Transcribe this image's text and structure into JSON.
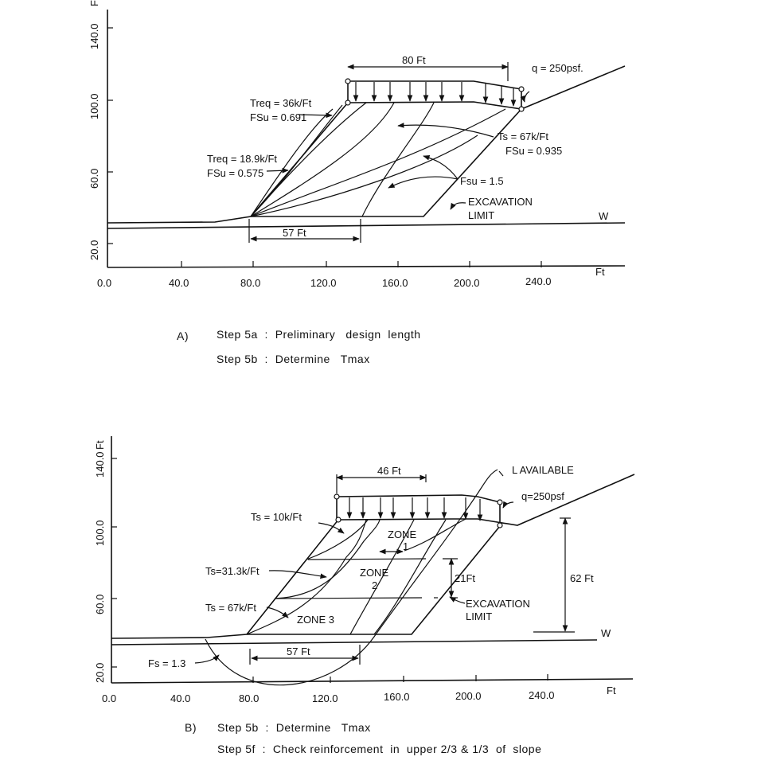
{
  "figure_a": {
    "y_unit": "Ft",
    "x_unit": "Ft",
    "y_ticks": [
      "140.0",
      "100.0",
      "60.0",
      "20.0"
    ],
    "x_ticks": [
      "0.0",
      "40.0",
      "80.0",
      "120.0",
      "160.0",
      "200.0",
      "240.0"
    ],
    "dim_top": "80 Ft",
    "dim_bottom": "57 Ft",
    "load": "q = 250psf.",
    "treq1": "Treq = 36k/Ft",
    "fsu1": "FSu = 0.691",
    "treq2": "Treq = 18.9k/Ft",
    "fsu2": "FSu = 0.575",
    "ts": "Ts = 67k/Ft",
    "fsu3": "FSu = 0.935",
    "fsu15": "Fsu = 1.5",
    "excavation1": "EXCAVATION",
    "excavation2": "LIMIT",
    "water": "W",
    "caption_label": "A)",
    "caption1": "Step 5a  :  Preliminary   design  length",
    "caption2": "Step 5b  :  Determine   Tmax"
  },
  "figure_b": {
    "y_unit": "Ft",
    "x_unit": "Ft",
    "y_ticks": [
      "140.0",
      "100.0",
      "60.0",
      "20.0"
    ],
    "x_ticks": [
      "0.0",
      "40.0",
      "80.0",
      "120.0",
      "160.0",
      "200.0",
      "240.0"
    ],
    "dim_top": "46 Ft",
    "dim_bottom": "57 Ft",
    "dim_zone": "21Ft",
    "dim_height": "62 Ft",
    "l_available": "L  AVAILABLE",
    "load": "q=250psf",
    "ts1": "Ts = 10k/Ft",
    "ts2": "Ts=31.3k/Ft",
    "ts3": "Ts = 67k/Ft",
    "fs": "Fs = 1.3",
    "zone1a": "ZONE",
    "zone1b": "1",
    "zone2a": "ZONE",
    "zone2b": "2",
    "zone3": "ZONE 3",
    "excavation1": "EXCAVATION",
    "excavation2": "LIMIT",
    "water": "W",
    "caption_label": "B)",
    "caption1": "Step 5b  :  Determine   Tmax",
    "caption2": "Step 5f  :  Check reinforcement  in  upper 2/3 & 1/3  of  slope"
  }
}
